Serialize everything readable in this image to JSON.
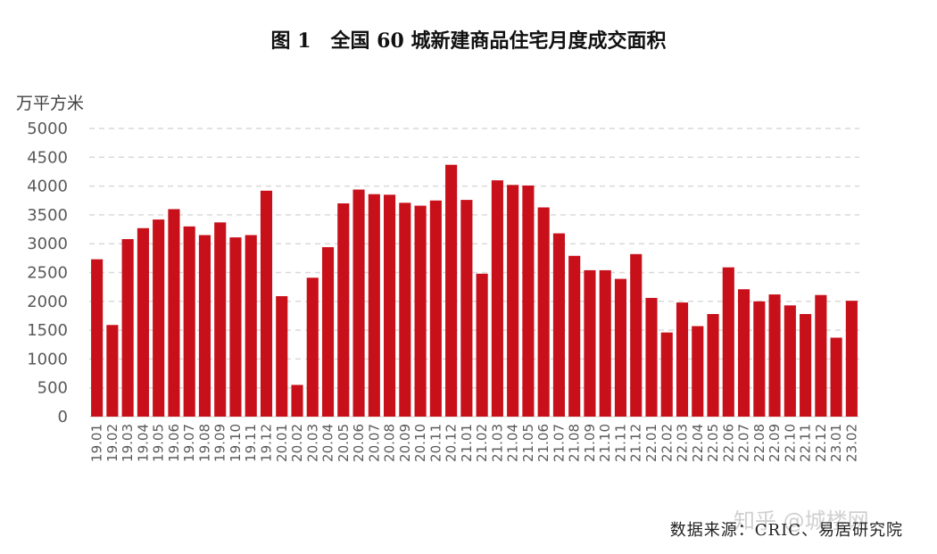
{
  "chart_data": {
    "type": "bar",
    "title": "图 1　全国 60 城新建商品住宅月度成交面积",
    "ylabel": "万平方米",
    "xlabel": "",
    "ylim": [
      0,
      5000
    ],
    "yticks": [
      0,
      500,
      1000,
      1500,
      2000,
      2500,
      3000,
      3500,
      4000,
      4500,
      5000
    ],
    "grid": "horizontal dashed",
    "bar_color": "#C8101A",
    "categories": [
      "19.01",
      "19.02",
      "19.03",
      "19.04",
      "19.05",
      "19.06",
      "19.07",
      "19.08",
      "19.09",
      "19.10",
      "19.11",
      "19.12",
      "20.01",
      "20.02",
      "20.03",
      "20.04",
      "20.05",
      "20.06",
      "20.07",
      "20.08",
      "20.09",
      "20.10",
      "20.11",
      "20.12",
      "21.01",
      "21.02",
      "21.03",
      "21.04",
      "21.05",
      "21.06",
      "21.07",
      "21.08",
      "21.09",
      "21.10",
      "21.11",
      "21.12",
      "22.01",
      "22.02",
      "22.03",
      "22.04",
      "22.05",
      "22.06",
      "22.07",
      "22.08",
      "22.09",
      "22.10",
      "22.11",
      "22.12",
      "23.01",
      "23.02"
    ],
    "values": [
      2730,
      1590,
      3080,
      3270,
      3420,
      3600,
      3300,
      3150,
      3370,
      3110,
      3150,
      3920,
      2090,
      550,
      2410,
      2940,
      3700,
      3940,
      3860,
      3850,
      3710,
      3660,
      3750,
      4370,
      3760,
      2480,
      4100,
      4020,
      4010,
      3630,
      3180,
      2790,
      2540,
      2540,
      2390,
      2820,
      2060,
      1460,
      1980,
      1570,
      1780,
      2590,
      2210,
      2000,
      2120,
      1930,
      1780,
      2110,
      1370,
      2010
    ]
  },
  "source": "数据来源：CRIC、易居研究院",
  "watermark": "知乎 @城楼网"
}
